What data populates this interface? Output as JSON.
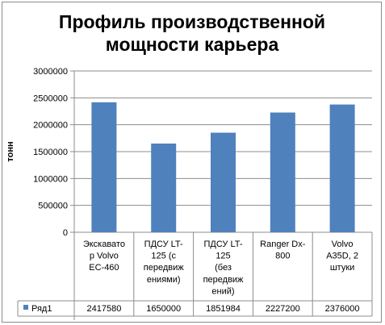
{
  "chart_data": {
    "type": "bar",
    "title_lines": [
      "Профиль производственной",
      "мощности карьера"
    ],
    "ylabel": "тонн",
    "xlabel": "",
    "ylim": [
      0,
      3000000
    ],
    "yticks": [
      "0",
      "500000",
      "1000000",
      "1500000",
      "2000000",
      "2500000",
      "3000000"
    ],
    "categories": [
      [
        "Экскавато",
        "р Volvo",
        "EC-460"
      ],
      [
        "ПДСУ LT-",
        "125     (с",
        "передвиж",
        "ениями)"
      ],
      [
        "ПДСУ LT-",
        "125",
        "(без",
        "передвиж",
        "ений)"
      ],
      [
        "Ranger Dx-",
        "800"
      ],
      [
        "Volvo",
        "A35D, 2",
        "штуки"
      ]
    ],
    "series": [
      {
        "name": "Ряд1",
        "color": "#4f81bd",
        "values": [
          2417580,
          1650000,
          1851984,
          2227200,
          2376000
        ],
        "labels": [
          "2417580",
          "1650000",
          "1851984",
          "2227200",
          "2376000"
        ]
      }
    ],
    "grid": true,
    "legend": "data-table"
  }
}
